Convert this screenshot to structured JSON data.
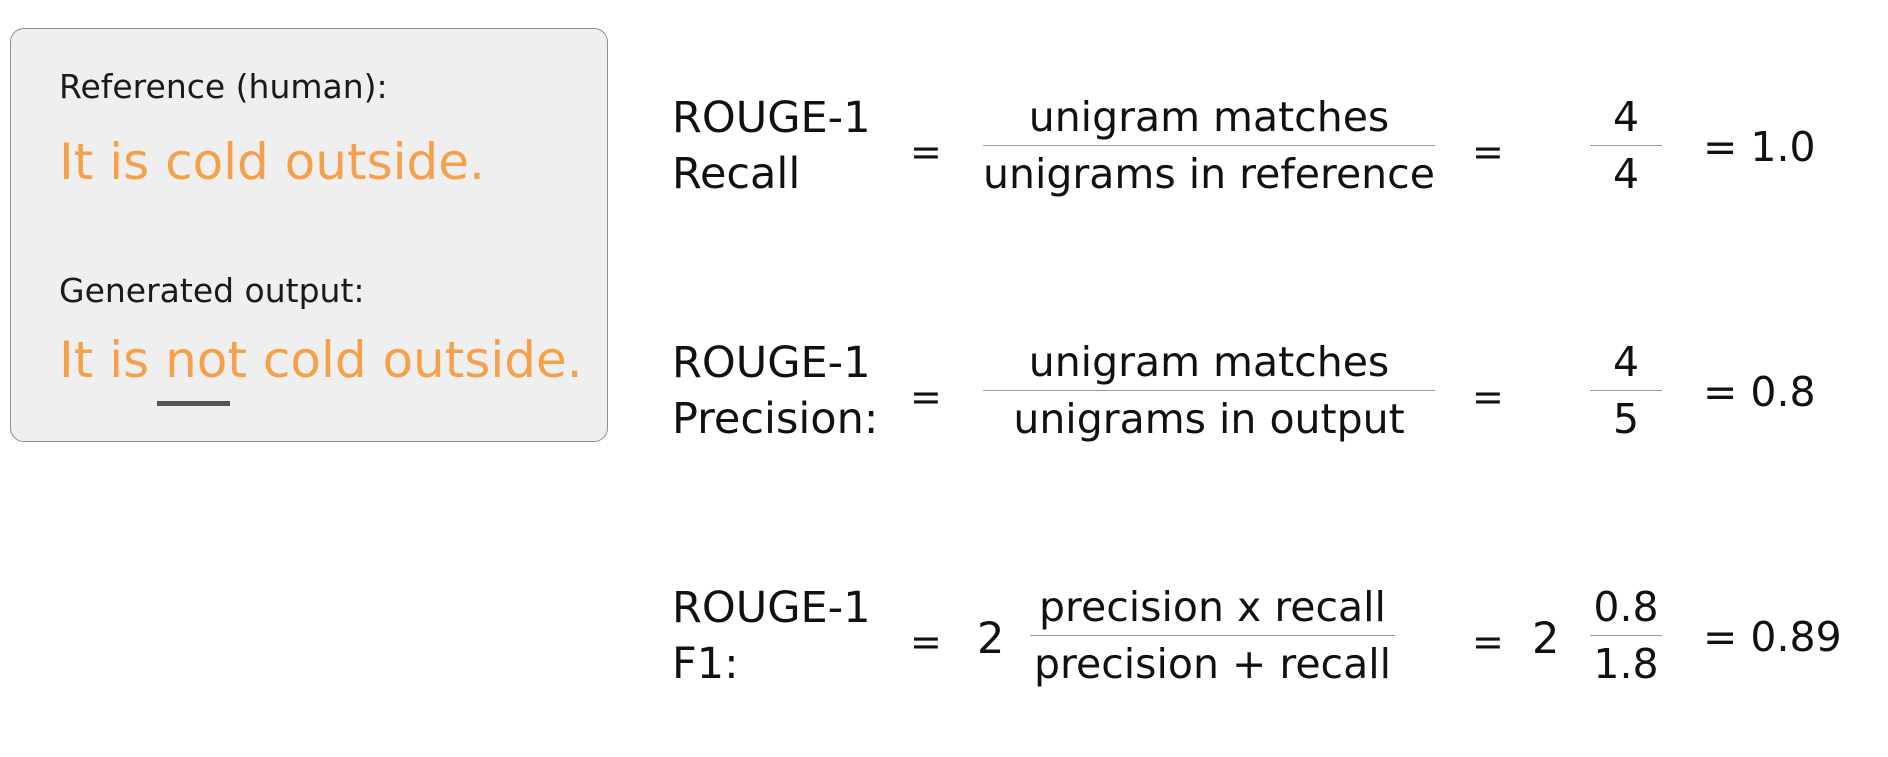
{
  "colors": {
    "accent": "#f5a04a",
    "panel_background": "#efefef",
    "panel_border": "#8e8e8e",
    "text": "#111111",
    "fraction_bar": "#9a9a9a",
    "underline": "#555555"
  },
  "panel": {
    "reference_label": "Reference (human):",
    "reference_sentence": "It is cold outside.",
    "generated_label": "Generated output:",
    "generated_sentence": "It is not cold outside."
  },
  "formulas": {
    "recall": {
      "metric_line1": "ROUGE-1",
      "metric_line2": "Recall",
      "equals1": "=",
      "numerator": "unigram matches",
      "denominator": "unigrams in reference",
      "equals2": "=",
      "value_numerator": "4",
      "value_denominator": "4",
      "result": "= 1.0"
    },
    "precision": {
      "metric_line1": "ROUGE-1",
      "metric_line2": "Precision:",
      "equals1": "=",
      "numerator": "unigram matches",
      "denominator": "unigrams in output",
      "equals2": "=",
      "value_numerator": "4",
      "value_denominator": "5",
      "result": "= 0.8"
    },
    "f1": {
      "metric_line1": "ROUGE-1",
      "metric_line2": "F1:",
      "equals1": "=",
      "coefficient1": "2",
      "numerator": "precision x recall",
      "denominator": "precision + recall",
      "equals2": "=",
      "coefficient2": "2",
      "value_numerator": "0.8",
      "value_denominator": "1.8",
      "result": "= 0.89"
    }
  }
}
